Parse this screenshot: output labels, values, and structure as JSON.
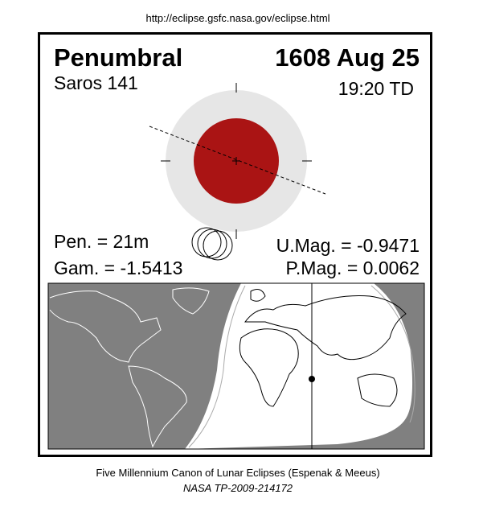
{
  "header": {
    "url": "http://eclipse.gsfc.nasa.gov/eclipse.html"
  },
  "eclipse": {
    "type": "Penumbral",
    "date": "1608 Aug 25",
    "saros": "Saros 141",
    "time": "19:20 TD",
    "pen": "Pen. = 21m",
    "gam": "Gam. = -1.5413",
    "umag": "U.Mag. = -0.9471",
    "pmag": "P.Mag. = 0.0062"
  },
  "footer": {
    "line1": "Five Millennium Canon of Lunar Eclipses (Espenak & Meeus)",
    "line2": "NASA TP-2009-214172"
  }
}
